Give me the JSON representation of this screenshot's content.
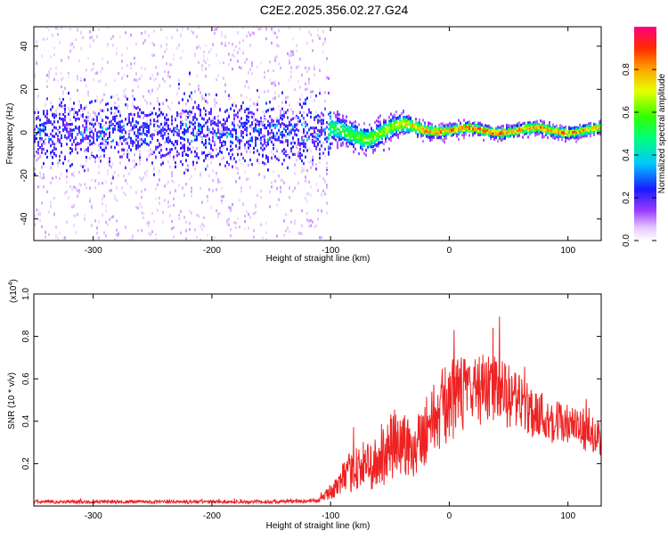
{
  "title": "C2E2.2025.356.02.27.G24",
  "colors": {
    "snr_line": "#ee2222",
    "axis": "#000000",
    "background": "#ffffff"
  },
  "chart_data": [
    {
      "type": "heatmap",
      "xlabel": "Height of straight line (km)",
      "ylabel": "Frequency (Hz)",
      "xlim": [
        -350,
        128
      ],
      "ylim": [
        -50,
        49
      ],
      "xticks": [
        -300,
        -200,
        -100,
        0,
        100
      ],
      "yticks": [
        -40,
        -20,
        0,
        20,
        40
      ],
      "colorbar": {
        "label": "Normalized spectral amplitude",
        "range": [
          0,
          1
        ],
        "ticks": [
          0.0,
          0.2,
          0.4,
          0.6,
          0.8
        ]
      },
      "description_points": [
        {
          "x": -350,
          "center_hz": 0,
          "spread_hz": 60,
          "peak_amp": 0.25
        },
        {
          "x": -200,
          "center_hz": 0,
          "spread_hz": 60,
          "peak_amp": 0.3
        },
        {
          "x": -105,
          "center_hz": 0,
          "spread_hz": 55,
          "peak_amp": 0.3
        },
        {
          "x": -100,
          "center_hz": 1,
          "spread_hz": 10,
          "peak_amp": 0.55
        },
        {
          "x": -70,
          "center_hz": -2,
          "spread_hz": 9,
          "peak_amp": 0.65
        },
        {
          "x": -40,
          "center_hz": 3,
          "spread_hz": 7,
          "peak_amp": 0.75
        },
        {
          "x": -20,
          "center_hz": 2,
          "spread_hz": 5,
          "peak_amp": 0.85
        },
        {
          "x": 0,
          "center_hz": 1,
          "spread_hz": 4,
          "peak_amp": 0.9
        },
        {
          "x": 60,
          "center_hz": 1,
          "spread_hz": 4,
          "peak_amp": 0.9
        },
        {
          "x": 128,
          "center_hz": 1,
          "spread_hz": 4,
          "peak_amp": 0.85
        }
      ]
    },
    {
      "type": "line",
      "xlabel": "Height of straight line (km)",
      "ylabel": "SNR (10 * v/v)",
      "yscale_label": "(x10^4)",
      "scale_base": "(x10",
      "scale_exp": "4",
      "scale_close": ")",
      "xlim": [
        -350,
        128
      ],
      "ylim": [
        0,
        1.0
      ],
      "xticks": [
        -300,
        -200,
        -100,
        0,
        100
      ],
      "yticks": [
        0.2,
        0.4,
        0.6,
        0.8,
        1.0
      ],
      "series": [
        {
          "name": "SNR",
          "color": "#ee2222",
          "envelope": [
            {
              "x": -350,
              "mean": 0.02,
              "noise": 0.008
            },
            {
              "x": -150,
              "mean": 0.02,
              "noise": 0.008
            },
            {
              "x": -110,
              "mean": 0.025,
              "noise": 0.01
            },
            {
              "x": -95,
              "mean": 0.09,
              "noise": 0.05
            },
            {
              "x": -80,
              "mean": 0.18,
              "noise": 0.11
            },
            {
              "x": -60,
              "mean": 0.2,
              "noise": 0.13
            },
            {
              "x": -45,
              "mean": 0.3,
              "noise": 0.18
            },
            {
              "x": -30,
              "mean": 0.28,
              "noise": 0.15
            },
            {
              "x": -15,
              "mean": 0.4,
              "noise": 0.17
            },
            {
              "x": 0,
              "mean": 0.5,
              "noise": 0.2
            },
            {
              "x": 20,
              "mean": 0.55,
              "noise": 0.17
            },
            {
              "x": 40,
              "mean": 0.55,
              "noise": 0.16
            },
            {
              "x": 60,
              "mean": 0.48,
              "noise": 0.14
            },
            {
              "x": 80,
              "mean": 0.42,
              "noise": 0.12
            },
            {
              "x": 100,
              "mean": 0.38,
              "noise": 0.1
            },
            {
              "x": 128,
              "mean": 0.32,
              "noise": 0.08
            }
          ]
        }
      ]
    }
  ]
}
